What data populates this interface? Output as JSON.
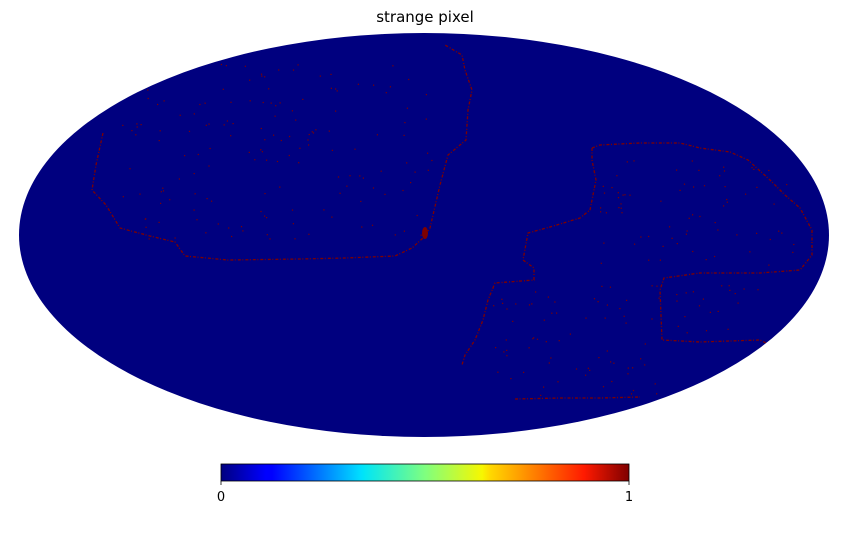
{
  "chart_data": {
    "type": "heatmap",
    "projection": "mollweide",
    "title": "strange pixel",
    "value_range": [
      0,
      1
    ],
    "colormap": "jet",
    "colorbar": {
      "orientation": "horizontal",
      "position": "bottom",
      "ticks": [
        "0",
        "1"
      ]
    },
    "background_value": 0,
    "highlight_value": 1,
    "highlighted_regions": [
      {
        "description": "boundary of a large footprint in the upper-left of the sky"
      },
      {
        "description": "boundary of a footprint on the right side, extending to the lower-middle"
      },
      {
        "description": "rectangular boundary at lower-right"
      }
    ]
  }
}
